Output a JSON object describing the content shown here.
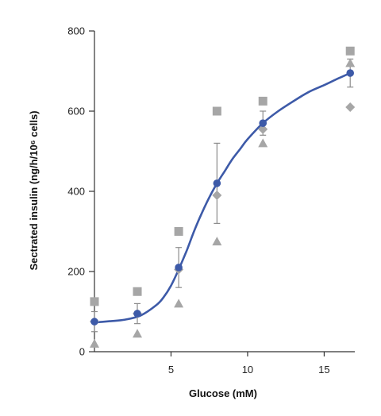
{
  "chart_data": {
    "type": "scatter",
    "xlabel": "Glucose (mM)",
    "ylabel": "Sectrated insulin (ng/h/10⁶ cells)",
    "xlim": [
      0,
      17
    ],
    "ylim": [
      0,
      800
    ],
    "x_ticks": [
      5,
      10,
      15
    ],
    "y_ticks": [
      0,
      200,
      400,
      600,
      800
    ],
    "grid": false,
    "legend": "none",
    "colors": {
      "fit_line": "#3d5aa8",
      "mean_marker": "#3d5aa8",
      "replicates": "#a6a6a6",
      "error_bars": "#8c8c8c",
      "axes": "#333333"
    },
    "series": [
      {
        "marker": "circle",
        "role": "mean",
        "x": [
          0,
          2.8,
          5.5,
          8,
          11,
          16.7
        ],
        "y": [
          75,
          95,
          210,
          420,
          570,
          695
        ],
        "yerr": [
          25,
          25,
          50,
          100,
          30,
          35
        ]
      },
      {
        "marker": "square",
        "role": "replicate",
        "x": [
          0,
          2.8,
          5.5,
          8,
          11,
          16.7
        ],
        "y": [
          125,
          150,
          300,
          600,
          625,
          750
        ]
      },
      {
        "marker": "diamond",
        "role": "replicate",
        "x": [
          0,
          2.8,
          5.5,
          8,
          11,
          16.7
        ],
        "y": [
          75,
          95,
          205,
          390,
          555,
          610
        ]
      },
      {
        "marker": "triangle",
        "role": "replicate",
        "x": [
          0,
          2.8,
          5.5,
          8,
          11,
          16.7
        ],
        "y": [
          20,
          45,
          120,
          275,
          520,
          720
        ]
      }
    ],
    "fit_curve": {
      "x": [
        0,
        1,
        2,
        3,
        4,
        4.5,
        5,
        5.5,
        6,
        6.5,
        7,
        7.5,
        8,
        8.5,
        9,
        9.5,
        10,
        11,
        12,
        13,
        14,
        15,
        16,
        16.7
      ],
      "y": [
        73,
        76,
        80,
        90,
        115,
        135,
        165,
        205,
        250,
        300,
        345,
        385,
        420,
        450,
        480,
        505,
        530,
        570,
        600,
        625,
        648,
        665,
        683,
        695
      ]
    }
  }
}
